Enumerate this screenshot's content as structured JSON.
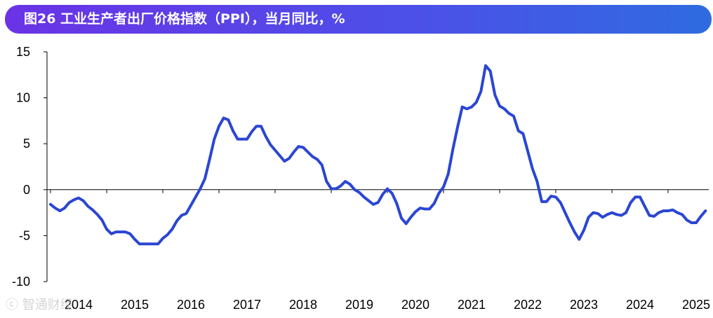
{
  "header": {
    "title": "图26 工业生产者出厂价格指数（PPI），当月同比，%"
  },
  "watermark": {
    "text": "ⓒ 智通财经"
  },
  "colors": {
    "line": "#2b46d1",
    "axis": "#000000",
    "title_bg_start": "#6a33e6",
    "title_bg_end": "#2f6be0"
  },
  "chart_data": {
    "type": "line",
    "title": "图26 工业生产者出厂价格指数（PPI），当月同比，%",
    "xlabel": "",
    "ylabel": "",
    "ylim": [
      -10,
      15
    ],
    "xlim": [
      "2014-01",
      "2025-09"
    ],
    "grid": false,
    "yticks": [
      15,
      10,
      5,
      0,
      -5,
      -10
    ],
    "yticks_labels": [
      "15",
      "10",
      "5",
      "0",
      "-5",
      "-10"
    ],
    "xticks_labels": [
      "2014",
      "2015",
      "2016",
      "2017",
      "2018",
      "2019",
      "2020",
      "2021",
      "2022",
      "2023",
      "2024",
      "2025"
    ],
    "series": [
      {
        "values": [
          -1.6,
          -2.0,
          -2.3,
          -2.0,
          -1.4,
          -1.1,
          -0.9,
          -1.2,
          -1.8,
          -2.2,
          -2.7,
          -3.3,
          -4.3,
          -4.8,
          -4.6,
          -4.6,
          -4.6,
          -4.8,
          -5.4,
          -5.9,
          -5.9,
          -5.9,
          -5.9,
          -5.9,
          -5.3,
          -4.9,
          -4.3,
          -3.4,
          -2.8,
          -2.6,
          -1.7,
          -0.8,
          0.1,
          1.2,
          3.3,
          5.5,
          6.9,
          7.8,
          7.6,
          6.4,
          5.5,
          5.5,
          5.5,
          6.3,
          6.9,
          6.9,
          5.8,
          4.9,
          4.3,
          3.7,
          3.1,
          3.4,
          4.1,
          4.7,
          4.6,
          4.1,
          3.6,
          3.3,
          2.7,
          0.9,
          0.1,
          0.1,
          0.4,
          0.9,
          0.6,
          0.0,
          -0.3,
          -0.8,
          -1.2,
          -1.6,
          -1.4,
          -0.5,
          0.1,
          -0.4,
          -1.5,
          -3.1,
          -3.7,
          -3.0,
          -2.4,
          -2.0,
          -2.1,
          -2.1,
          -1.5,
          -0.4,
          0.3,
          1.7,
          4.4,
          6.8,
          9.0,
          8.8,
          9.0,
          9.5,
          10.7,
          13.5,
          12.9,
          10.3,
          9.1,
          8.8,
          8.3,
          8.0,
          6.4,
          6.1,
          4.2,
          2.3,
          0.9,
          -1.3,
          -1.3,
          -0.7,
          -0.8,
          -1.4,
          -2.5,
          -3.6,
          -4.6,
          -5.4,
          -4.4,
          -3.0,
          -2.5,
          -2.6,
          -3.0,
          -2.7,
          -2.5,
          -2.7,
          -2.8,
          -2.5,
          -1.4,
          -0.8,
          -0.8,
          -1.8,
          -2.8,
          -2.9,
          -2.5,
          -2.3,
          -2.3,
          -2.2,
          -2.5,
          -2.7,
          -3.3,
          -3.6,
          -3.6,
          -2.9,
          -2.3
        ]
      }
    ]
  }
}
